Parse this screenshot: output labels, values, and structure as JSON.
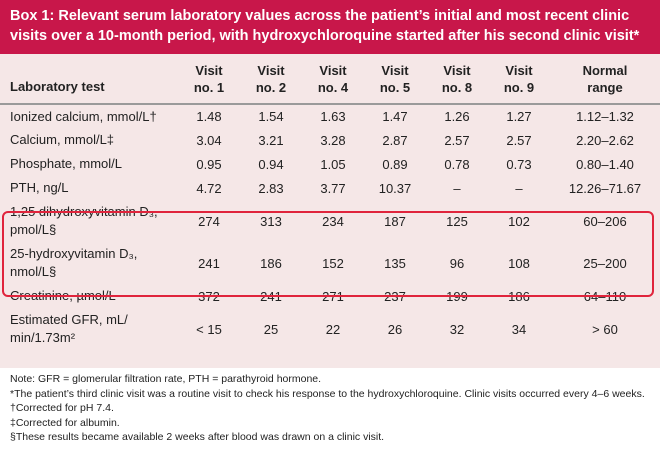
{
  "title": "Box 1: Relevant serum laboratory values across the patient’s initial and most recent clinic visits over a 10-month period, with hydroxychloroquine started after his second clinic visit*",
  "table": {
    "headers": [
      {
        "line1": "Laboratory test",
        "line2": ""
      },
      {
        "line1": "Visit",
        "line2": "no. 1"
      },
      {
        "line1": "Visit",
        "line2": "no. 2"
      },
      {
        "line1": "Visit",
        "line2": "no. 4"
      },
      {
        "line1": "Visit",
        "line2": "no. 5"
      },
      {
        "line1": "Visit",
        "line2": "no. 8"
      },
      {
        "line1": "Visit",
        "line2": "no. 9"
      },
      {
        "line1": "Normal",
        "line2": "range"
      }
    ],
    "rows": [
      {
        "test": "Ionized calcium, mmol/L†",
        "test2": "",
        "values": [
          "1.48",
          "1.54",
          "1.63",
          "1.47",
          "1.26",
          "1.27",
          "1.12–1.32"
        ]
      },
      {
        "test": "Calcium, mmol/L‡",
        "test2": "",
        "values": [
          "3.04",
          "3.21",
          "3.28",
          "2.87",
          "2.57",
          "2.57",
          "2.20–2.62"
        ]
      },
      {
        "test": "Phosphate, mmol/L",
        "test2": "",
        "values": [
          "0.95",
          "0.94",
          "1.05",
          "0.89",
          "0.78",
          "0.73",
          "0.80–1.40"
        ]
      },
      {
        "test": "PTH, ng/L",
        "test2": "",
        "values": [
          "4.72",
          "2.83",
          "3.77",
          "10.37",
          "–",
          "–",
          "12.26–71.67"
        ]
      },
      {
        "test": "1,25 dihydroxyvitamin D₃,",
        "test2": "pmol/L§",
        "values": [
          "274",
          "313",
          "234",
          "187",
          "125",
          "102",
          "60–206"
        ]
      },
      {
        "test": "25-hydroxyvitamin D₃,",
        "test2": "nmol/L§",
        "values": [
          "241",
          "186",
          "152",
          "135",
          "96",
          "108",
          "25–200"
        ]
      },
      {
        "test": "Creatinine, µmol/L",
        "test2": "",
        "values": [
          "372",
          "241",
          "271",
          "237",
          "199",
          "186",
          "64–110"
        ]
      },
      {
        "test": "Estimated GFR, mL/",
        "test2": "min/1.73m²",
        "values": [
          "< 15",
          "25",
          "22",
          "26",
          "32",
          "34",
          "> 60"
        ]
      }
    ]
  },
  "notes": [
    "Note: GFR = glomerular filtration rate, PTH = parathyroid hormone.",
    "*The patient’s third clinic visit was a routine visit to check his response to the hydroxychloroquine. Clinic visits occurred every 4–6 weeks.",
    "†Corrected for pH 7.4.",
    "‡Corrected for albumin.",
    "§These results became available 2 weeks after blood was drawn on a clinic visit."
  ],
  "colors": {
    "title_bg": "#c8174a",
    "table_bg": "#f5e7e7",
    "highlight_border": "#e0243c"
  }
}
